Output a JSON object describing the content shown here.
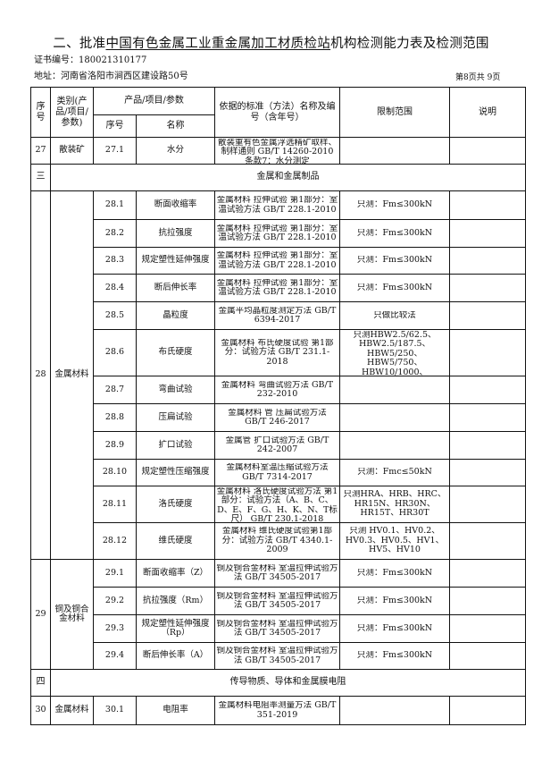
{
  "title": {
    "prefix": "二、批准",
    "org": "中国有色金属工业重金属加工材质检站",
    "suffix": "机构检测能力表及检测范围"
  },
  "cert": "证书编号：180021310177",
  "address": "地址：河南省洛阳市涧西区建设路50号",
  "page": "第8页共 9页",
  "header": {
    "no": "序号",
    "category": "类别(产品/项目/参数)",
    "product": "产品/项目/参数",
    "sub_no": "序号",
    "name": "名称",
    "standard": "依据的标准（方法）名称及编号（含年号）",
    "limit": "限制范围",
    "note": "说明"
  },
  "groups": [
    {
      "type": "group",
      "no": "27",
      "category": "散装矿",
      "items": [
        {
          "sub": "27.1",
          "name": "水分",
          "std": "散装重有色金属浮选精矿取样、制样通则 GB/T 14260-2010 条款7：水分测定",
          "limit": "",
          "h": 30
        }
      ]
    },
    {
      "type": "section",
      "no": "三",
      "label": "金属和金属制品"
    },
    {
      "type": "group",
      "no": "28",
      "category": "金属材料",
      "items": [
        {
          "sub": "28.1",
          "name": "断面收缩率",
          "std": "金属材料 拉伸试验 第1部分：室温试验方法 GB/T 228.1-2010",
          "limit": "只测：Fm≤300kN",
          "h": 32
        },
        {
          "sub": "28.2",
          "name": "抗拉强度",
          "std": "金属材料 拉伸试验 第1部分：室温试验方法 GB/T 228.1-2010",
          "limit": "只测：Fm≤300kN",
          "h": 31
        },
        {
          "sub": "28.3",
          "name": "规定塑性延伸强度",
          "std": "金属材料 拉伸试验 第1部分：室温试验方法 GB/T 228.1-2010",
          "limit": "只测：Fm≤300kN",
          "h": 30
        },
        {
          "sub": "28.4",
          "name": "断后伸长率",
          "std": "金属材料 拉伸试验 第1部分：室温试验方法 GB/T 228.1-2010",
          "limit": "只测：Fm≤300kN",
          "h": 31
        },
        {
          "sub": "28.5",
          "name": "晶粒度",
          "std": "金属平均晶粒度测定方法 GB/T 6394-2017",
          "limit": "只做比较法",
          "h": 31
        },
        {
          "sub": "28.6",
          "name": "布氏硬度",
          "std": "金属材料 布氏硬度试验 第1部分：试验方法 GB/T 231.1-2018",
          "limit": "只测HBW2.5/62.5、HBW2.5/187.5、HBW5/250、HBW5/750、HBW10/1000、HBW10/3000",
          "h": 52
        },
        {
          "sub": "28.7",
          "name": "弯曲试验",
          "std": "金属材料 弯曲试验方法 GB/T 232-2010",
          "limit": "",
          "h": 31
        },
        {
          "sub": "28.8",
          "name": "压扁试验",
          "std": "金属材料 管 压扁试验方法 GB/T 246-2017",
          "limit": "",
          "h": 31
        },
        {
          "sub": "28.9",
          "name": "扩口试验",
          "std": "金属管 扩口试验方法 GB/T 242-2007",
          "limit": "",
          "h": 31
        },
        {
          "sub": "28.10",
          "name": "规定塑性压缩强度",
          "std": "金属材料室温压缩试验方法 GB/T 7314-2017",
          "limit": "只测：Fmc≤50kN",
          "h": 30
        },
        {
          "sub": "28.11",
          "name": "洛氏硬度",
          "std": "金属材料 洛氏硬度试验方法 第1部分：试验方法（A、B、C、D、E、F、G、H、K、N、T标尺） GB/T 230.1-2018",
          "limit": "只测HRA、HRB、HRC、HR15N、HR30N、HR15T、HR30T",
          "h": 41
        },
        {
          "sub": "28.12",
          "name": "维氏硬度",
          "std": "金属材料 维氏硬度试验第1部分：试验方法 GB/T 4340.1-2009",
          "limit": "只测 HV0.1、HV0.2、HV0.3、HV0.5、HV1、HV5、HV10",
          "h": 41
        }
      ]
    },
    {
      "type": "group",
      "no": "29",
      "category": "铜及铜合金材料",
      "items": [
        {
          "sub": "29.1",
          "name": "断面收缩率（Z）",
          "std": "铜及铜合金材料 室温拉伸试验方法 GB/T 34505-2017",
          "limit": "只测：Fm≤300kN",
          "h": 31
        },
        {
          "sub": "29.2",
          "name": "抗拉强度（Rm）",
          "std": "铜及铜合金材料 室温拉伸试验方法 GB/T 34505-2017",
          "limit": "只测：Fm≤300kN",
          "h": 31
        },
        {
          "sub": "29.3",
          "name": "规定塑性延伸强度（Rp）",
          "std": "铜及铜合金材料 室温拉伸试验方法 GB/T 34505-2017",
          "limit": "只测：Fm≤300kN",
          "h": 31
        },
        {
          "sub": "29.4",
          "name": "断后伸长率（A）",
          "std": "铜及铜合金材料 室温拉伸试验方法 GB/T 34505-2017",
          "limit": "只测：Fm≤300kN",
          "h": 30
        }
      ]
    },
    {
      "type": "section",
      "no": "四",
      "label": "传导物质、导体和金属膜电阻"
    },
    {
      "type": "group",
      "no": "30",
      "category": "金属材料",
      "items": [
        {
          "sub": "30.1",
          "name": "电阻率",
          "std": "金属材料电阻率测量方法 GB/T 351-2019",
          "limit": "",
          "h": 32
        }
      ]
    }
  ]
}
